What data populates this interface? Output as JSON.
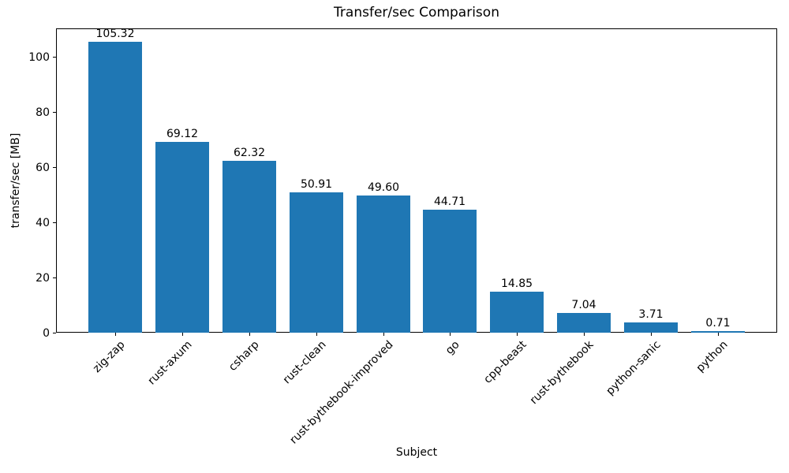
{
  "chart_data": {
    "type": "bar",
    "title": "Transfer/sec Comparison",
    "xlabel": "Subject",
    "ylabel": "transfer/sec [MB]",
    "categories": [
      "zig-zap",
      "rust-axum",
      "csharp",
      "rust-clean",
      "rust-bythebook-improved",
      "go",
      "cpp-beast",
      "rust-bythebook",
      "python-sanic",
      "python"
    ],
    "values": [
      105.32,
      69.12,
      62.32,
      50.91,
      49.6,
      44.71,
      14.85,
      7.04,
      3.71,
      0.71
    ],
    "value_labels": [
      "105.32",
      "69.12",
      "62.32",
      "50.91",
      "49.60",
      "44.71",
      "14.85",
      "7.04",
      "3.71",
      "0.71"
    ],
    "yticks": [
      0,
      20,
      40,
      60,
      80,
      100
    ],
    "ytick_labels": [
      "0",
      "20",
      "40",
      "60",
      "80",
      "100"
    ],
    "ylim": [
      0,
      110.3
    ],
    "bar_color": "#1f77b4",
    "axis_color": "#000000",
    "background_color": "#ffffff",
    "grid": false,
    "legend": null
  }
}
